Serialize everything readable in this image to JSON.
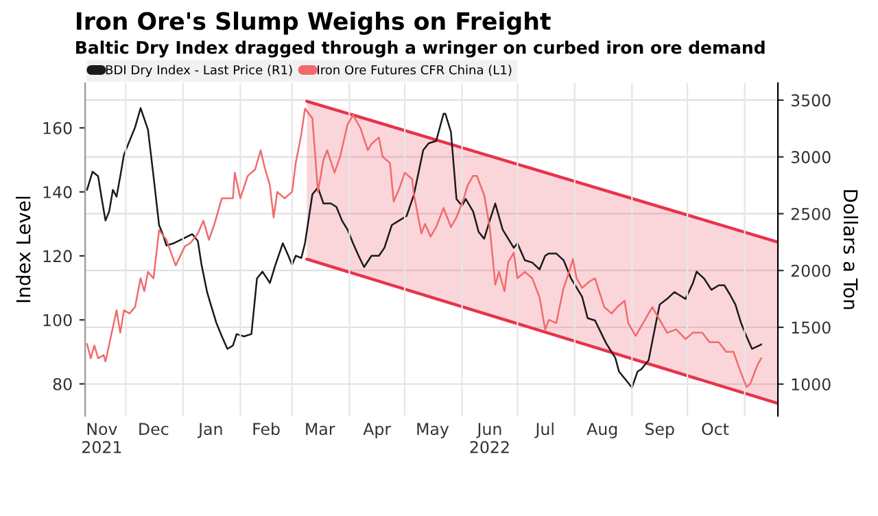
{
  "chart_data": {
    "type": "line",
    "title": "Iron Ore's Slump Weighs on Freight",
    "subtitle": "Baltic Dry Index dragged through a wringer on curbed iron ore demand",
    "ylabel": "Index Level",
    "y2label": "Dollars a Ton",
    "xlim": [
      "2021-11-09",
      "2022-11-19"
    ],
    "xticks": [
      {
        "value": "2021-11-18",
        "label": "Nov\n2021"
      },
      {
        "value": "2021-12-01",
        "label": null
      },
      {
        "value": "2021-12-16",
        "label": "Dec"
      },
      {
        "value": "2022-01-01",
        "label": null
      },
      {
        "value": "2022-01-16",
        "label": "Jan"
      },
      {
        "value": "2022-02-01",
        "label": null
      },
      {
        "value": "2022-02-15",
        "label": "Feb"
      },
      {
        "value": "2022-03-01",
        "label": null
      },
      {
        "value": "2022-03-16",
        "label": "Mar"
      },
      {
        "value": "2022-04-01",
        "label": null
      },
      {
        "value": "2022-04-16",
        "label": "Apr"
      },
      {
        "value": "2022-05-01",
        "label": null
      },
      {
        "value": "2022-05-16",
        "label": "May"
      },
      {
        "value": "2022-06-01",
        "label": null
      },
      {
        "value": "2022-06-16",
        "label": "Jun\n2022"
      },
      {
        "value": "2022-07-01",
        "label": null
      },
      {
        "value": "2022-07-16",
        "label": "Jul"
      },
      {
        "value": "2022-08-01",
        "label": null
      },
      {
        "value": "2022-08-16",
        "label": "Aug"
      },
      {
        "value": "2022-09-01",
        "label": null
      },
      {
        "value": "2022-09-16",
        "label": "Sep"
      },
      {
        "value": "2022-10-01",
        "label": null
      },
      {
        "value": "2022-10-16",
        "label": "Oct"
      },
      {
        "value": "2022-11-01",
        "label": null
      }
    ],
    "ylim": [
      70,
      174
    ],
    "yticks": [
      80,
      100,
      120,
      140,
      160
    ],
    "y2lim": [
      720,
      3650
    ],
    "y2ticks": [
      1000,
      1500,
      2000,
      2500,
      3000,
      3500
    ],
    "grid": true,
    "legend": "top left",
    "marker": "none",
    "line_style": "solid",
    "series": [
      {
        "type": "line",
        "color": "#e8334a",
        "axis": "y2",
        "x": [
          "2022-03-09",
          "2022-11-19"
        ],
        "values": [
          3490,
          2250
        ],
        "lower": [
          2100,
          830
        ],
        "upper": [
          3490,
          2250
        ]
      },
      {
        "type": "line",
        "color": "#e8334a",
        "axis": "y2",
        "x": [
          "2022-03-09",
          "2022-11-19"
        ],
        "values": [
          2100,
          830
        ]
      },
      {
        "name": "BDI Dry Index - Last Price (R1)",
        "color": "#1a1a1a",
        "axis": "y2",
        "x": [
          "2021-11-10",
          "2021-11-13",
          "2021-11-16",
          "2021-11-18",
          "2021-11-20",
          "2021-11-22",
          "2021-11-24",
          "2021-11-26",
          "2021-11-28",
          "2021-11-30",
          "2021-12-03",
          "2021-12-06",
          "2021-12-09",
          "2021-12-13",
          "2021-12-16",
          "2021-12-19",
          "2021-12-21",
          "2021-12-23",
          "2021-12-27",
          "2022-01-01",
          "2022-01-06",
          "2022-01-09",
          "2022-01-11",
          "2022-01-14",
          "2022-01-16",
          "2022-01-19",
          "2022-01-22",
          "2022-01-25",
          "2022-01-28",
          "2022-01-30",
          "2022-02-03",
          "2022-02-07",
          "2022-02-10",
          "2022-02-13",
          "2022-02-17",
          "2022-02-20",
          "2022-02-24",
          "2022-02-27",
          "2022-03-01",
          "2022-03-03",
          "2022-03-06",
          "2022-03-08",
          "2022-03-12",
          "2022-03-15",
          "2022-03-18",
          "2022-03-22",
          "2022-03-25",
          "2022-03-28",
          "2022-03-31",
          "2022-04-03",
          "2022-04-06",
          "2022-04-09",
          "2022-04-13",
          "2022-04-17",
          "2022-04-20",
          "2022-04-24",
          "2022-04-28",
          "2022-05-02",
          "2022-05-06",
          "2022-05-11",
          "2022-05-14",
          "2022-05-18",
          "2022-05-22",
          "2022-05-23",
          "2022-05-26",
          "2022-05-29",
          "2022-06-01",
          "2022-06-03",
          "2022-06-07",
          "2022-06-10",
          "2022-06-13",
          "2022-06-16",
          "2022-06-19",
          "2022-06-23",
          "2022-06-26",
          "2022-06-29",
          "2022-07-01",
          "2022-07-05",
          "2022-07-09",
          "2022-07-13",
          "2022-07-16",
          "2022-07-18",
          "2022-07-22",
          "2022-07-26",
          "2022-07-30",
          "2022-08-02",
          "2022-08-05",
          "2022-08-08",
          "2022-08-12",
          "2022-08-15",
          "2022-08-18",
          "2022-08-23",
          "2022-08-25",
          "2022-08-29",
          "2022-09-01",
          "2022-09-04",
          "2022-09-06",
          "2022-09-10",
          "2022-09-14",
          "2022-09-16",
          "2022-09-20",
          "2022-09-24",
          "2022-09-26",
          "2022-09-30",
          "2022-10-04",
          "2022-10-06",
          "2022-10-10",
          "2022-10-14",
          "2022-10-18",
          "2022-10-21",
          "2022-10-24",
          "2022-10-27",
          "2022-10-30",
          "2022-11-02",
          "2022-11-05",
          "2022-11-09",
          "2022-11-10"
        ],
        "values": [
          2710,
          2870,
          2830,
          2630,
          2440,
          2520,
          2710,
          2650,
          2830,
          3020,
          3140,
          3260,
          3430,
          3240,
          2830,
          2400,
          2320,
          2220,
          2240,
          2280,
          2320,
          2260,
          2050,
          1810,
          1700,
          1540,
          1420,
          1310,
          1340,
          1440,
          1420,
          1440,
          1930,
          1990,
          1890,
          2050,
          2240,
          2130,
          2050,
          2130,
          2110,
          2240,
          2670,
          2730,
          2590,
          2590,
          2560,
          2440,
          2360,
          2240,
          2130,
          2030,
          2130,
          2130,
          2200,
          2400,
          2440,
          2480,
          2670,
          3060,
          3120,
          3140,
          3380,
          3380,
          3220,
          2630,
          2570,
          2630,
          2520,
          2340,
          2280,
          2440,
          2590,
          2360,
          2280,
          2200,
          2240,
          2090,
          2070,
          2010,
          2130,
          2150,
          2150,
          2090,
          1930,
          1850,
          1770,
          1580,
          1560,
          1460,
          1360,
          1230,
          1110,
          1030,
          970,
          1110,
          1130,
          1210,
          1540,
          1700,
          1750,
          1810,
          1790,
          1750,
          1890,
          1990,
          1930,
          1830,
          1870,
          1870,
          1790,
          1700,
          1540,
          1420,
          1310,
          1340,
          1350
        ]
      },
      {
        "name": "Iron Ore Futures CFR China (L1)",
        "color": "#f26b6b",
        "x": [
          "2021-11-10",
          "2021-11-12",
          "2021-11-14",
          "2021-11-16",
          "2021-11-19",
          "2021-11-20",
          "2021-11-26",
          "2021-11-28",
          "2021-11-30",
          "2021-12-03",
          "2021-12-06",
          "2021-12-09",
          "2021-12-11",
          "2021-12-13",
          "2021-12-16",
          "2021-12-19",
          "2021-12-23",
          "2021-12-28",
          "2022-01-02",
          "2022-01-05",
          "2022-01-09",
          "2022-01-12",
          "2022-01-15",
          "2022-01-18",
          "2022-01-22",
          "2022-01-25",
          "2022-01-28",
          "2022-01-29",
          "2022-02-01",
          "2022-02-05",
          "2022-02-09",
          "2022-02-12",
          "2022-02-14",
          "2022-02-17",
          "2022-02-19",
          "2022-02-21",
          "2022-02-25",
          "2022-03-01",
          "2022-03-03",
          "2022-03-06",
          "2022-03-08",
          "2022-03-12",
          "2022-03-15",
          "2022-03-18",
          "2022-03-20",
          "2022-03-24",
          "2022-03-27",
          "2022-03-31",
          "2022-04-03",
          "2022-04-07",
          "2022-04-11",
          "2022-04-13",
          "2022-04-17",
          "2022-04-19",
          "2022-04-23",
          "2022-04-25",
          "2022-04-28",
          "2022-05-01",
          "2022-05-05",
          "2022-05-06",
          "2022-05-10",
          "2022-05-12",
          "2022-05-15",
          "2022-05-18",
          "2022-05-22",
          "2022-05-26",
          "2022-05-29",
          "2022-06-02",
          "2022-06-04",
          "2022-06-07",
          "2022-06-09",
          "2022-06-13",
          "2022-06-16",
          "2022-06-19",
          "2022-06-21",
          "2022-06-24",
          "2022-06-26",
          "2022-06-29",
          "2022-07-01",
          "2022-07-05",
          "2022-07-09",
          "2022-07-13",
          "2022-07-16",
          "2022-07-18",
          "2022-07-22",
          "2022-07-26",
          "2022-07-29",
          "2022-07-31",
          "2022-08-02",
          "2022-08-05",
          "2022-08-09",
          "2022-08-12",
          "2022-08-17",
          "2022-08-21",
          "2022-08-24",
          "2022-08-28",
          "2022-08-30",
          "2022-09-03",
          "2022-09-06",
          "2022-09-10",
          "2022-09-12",
          "2022-09-16",
          "2022-09-20",
          "2022-09-25",
          "2022-09-30",
          "2022-10-04",
          "2022-10-09",
          "2022-10-13",
          "2022-10-18",
          "2022-10-22",
          "2022-10-26",
          "2022-10-29",
          "2022-11-02",
          "2022-11-04",
          "2022-11-08",
          "2022-11-10"
        ],
        "values": [
          92.5,
          88,
          92,
          88,
          89,
          87,
          103,
          96,
          103,
          102,
          104,
          113,
          109,
          115,
          113,
          128,
          125,
          117,
          123,
          124,
          127,
          131,
          125,
          130,
          138,
          138,
          138,
          146,
          138,
          145,
          147,
          153,
          148,
          142,
          132,
          140,
          138,
          140,
          149,
          158,
          166,
          163,
          140,
          150,
          153,
          146,
          151,
          161,
          164,
          160,
          153,
          155,
          157,
          151,
          149,
          137,
          141,
          146,
          144,
          139,
          127,
          130,
          126,
          129,
          135,
          129,
          132,
          138,
          142,
          145,
          145,
          139,
          129,
          111,
          115,
          109,
          118,
          121,
          113,
          115,
          113,
          107,
          97,
          100,
          99,
          110,
          115,
          119,
          113,
          110,
          112,
          113,
          104,
          102,
          104,
          106,
          99,
          95,
          98,
          102,
          104,
          100,
          96,
          97,
          94,
          96,
          96,
          93,
          93,
          90,
          90,
          85,
          79,
          80,
          86,
          88
        ]
      }
    ]
  }
}
